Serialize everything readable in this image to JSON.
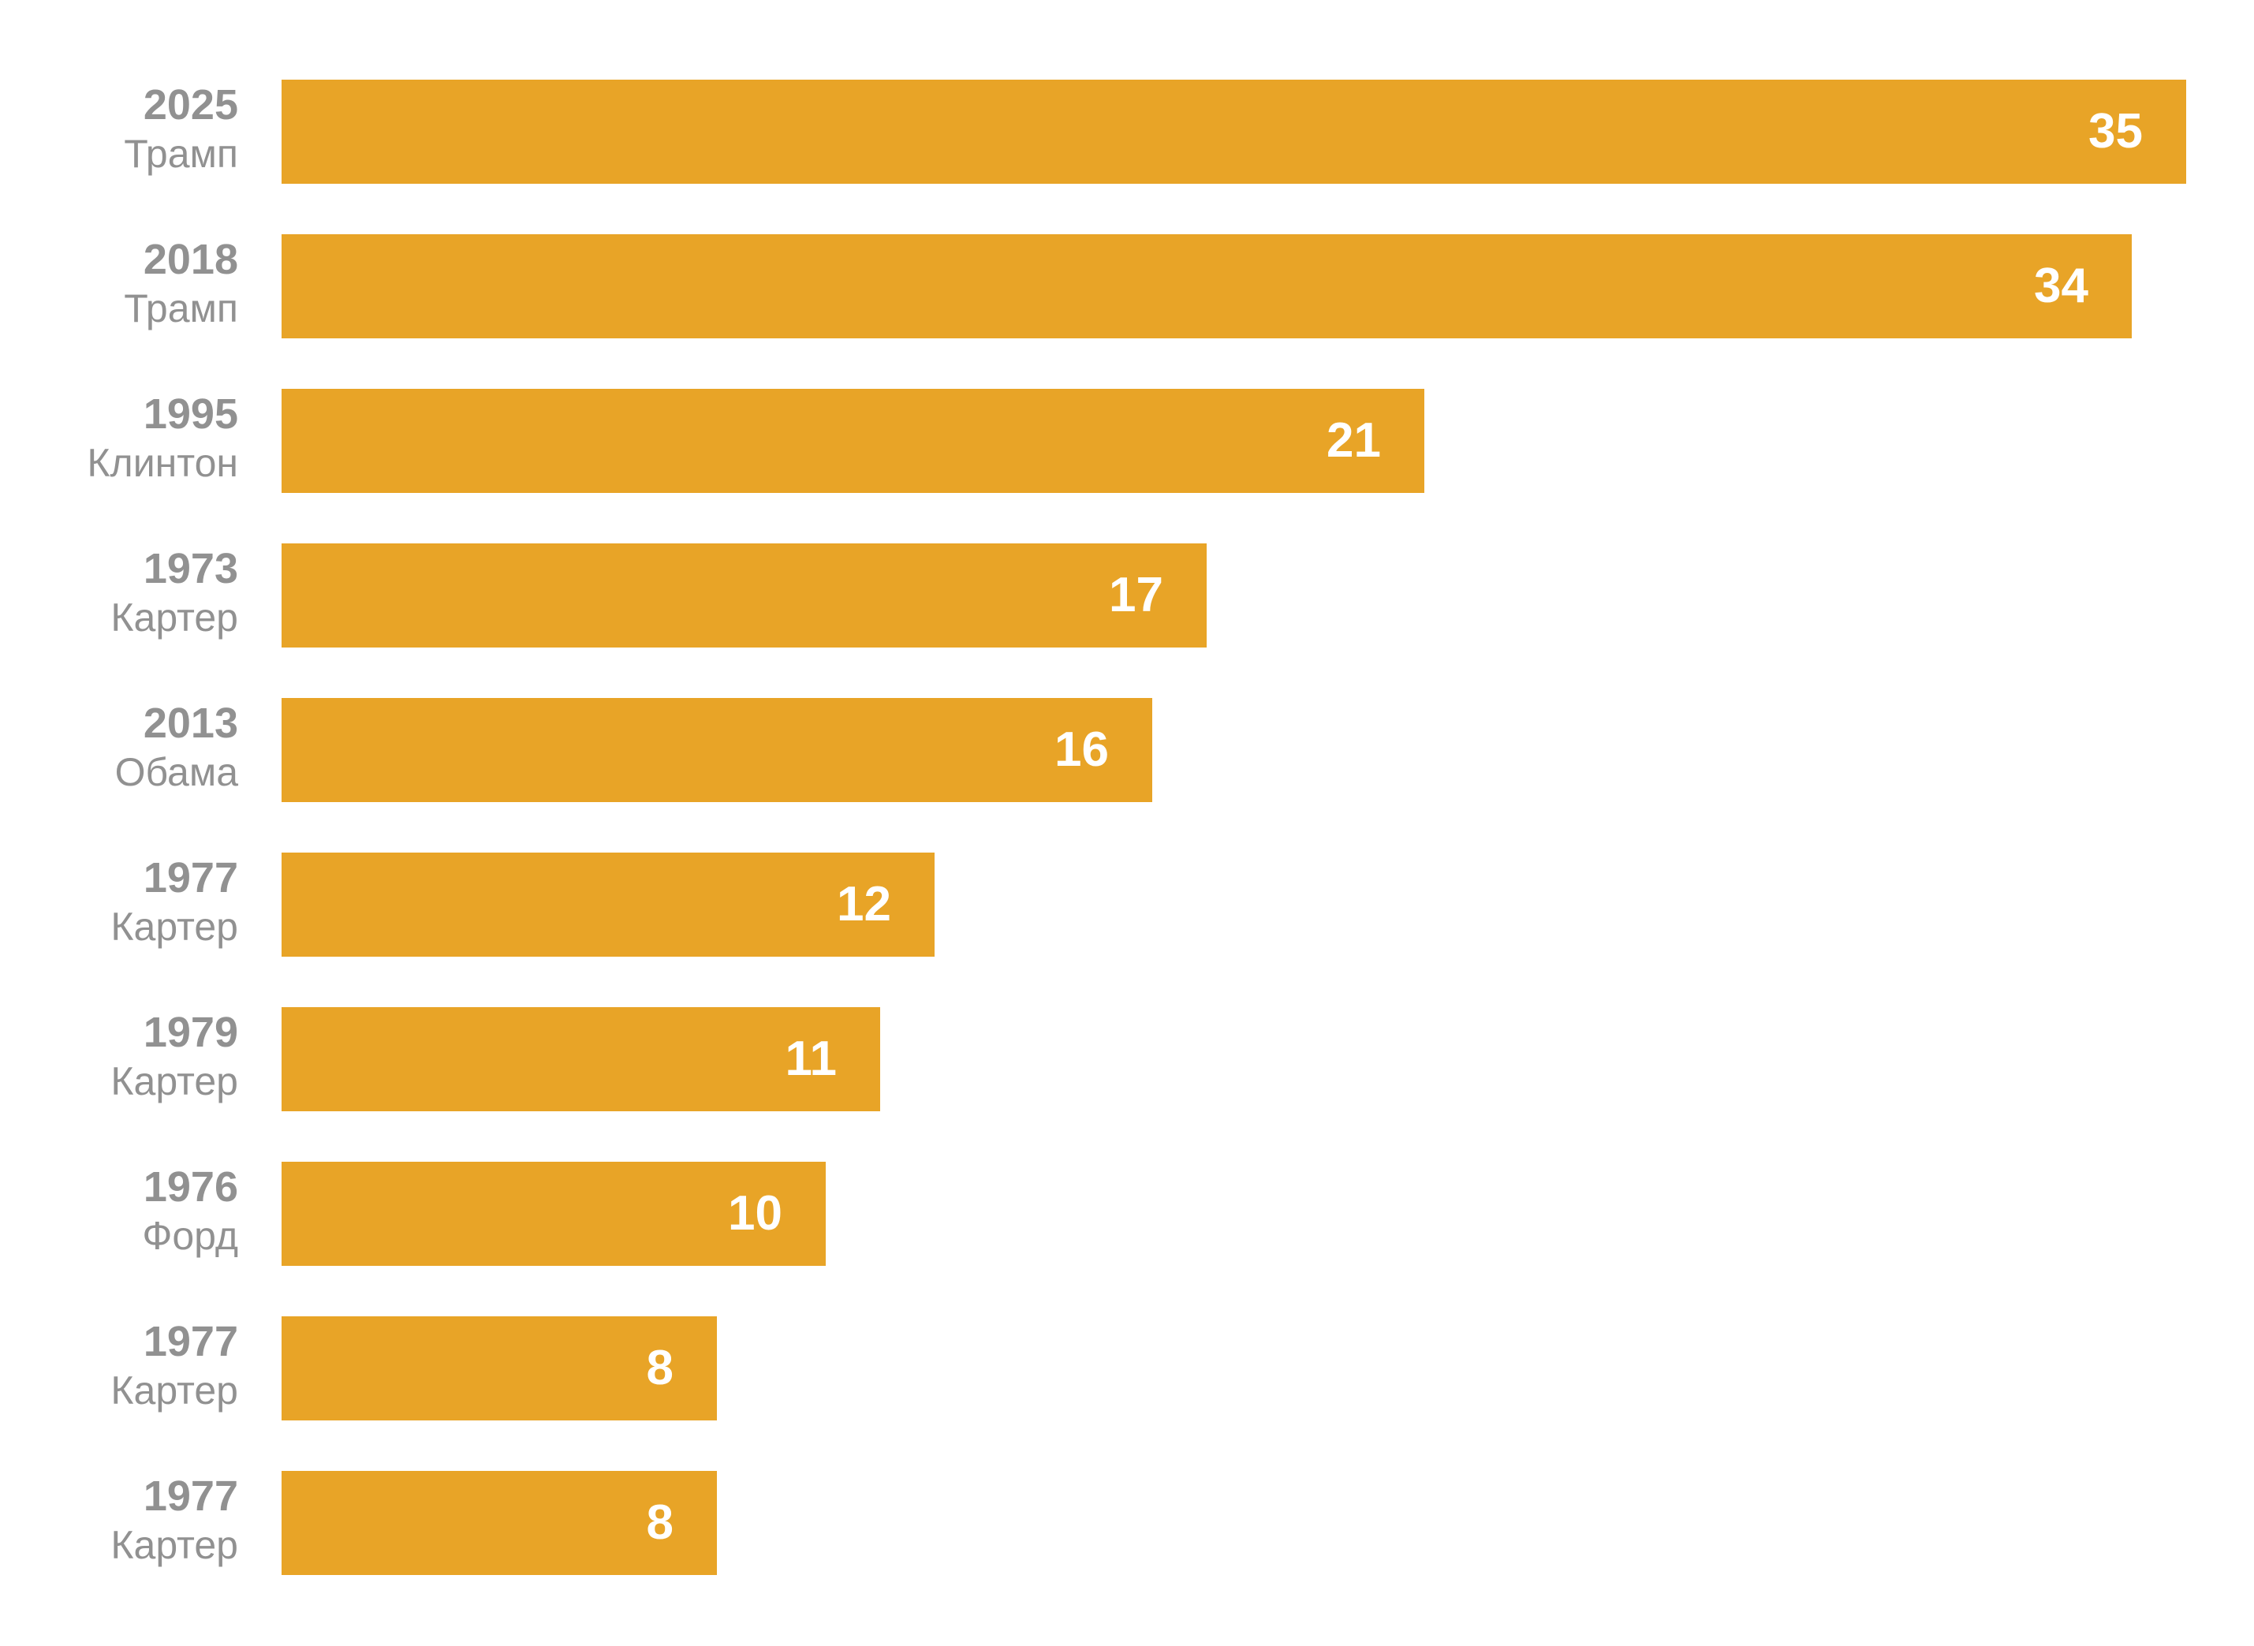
{
  "chart_data": {
    "type": "bar",
    "orientation": "horizontal",
    "categories": [
      {
        "year": "2025",
        "name": "Трамп"
      },
      {
        "year": "2018",
        "name": "Трамп"
      },
      {
        "year": "1995",
        "name": "Клинтон"
      },
      {
        "year": "1973",
        "name": "Картер"
      },
      {
        "year": "2013",
        "name": "Обама"
      },
      {
        "year": "1977",
        "name": "Картер"
      },
      {
        "year": "1979",
        "name": "Картер"
      },
      {
        "year": "1976",
        "name": "Форд"
      },
      {
        "year": "1977",
        "name": "Картер"
      },
      {
        "year": "1977",
        "name": "Картер"
      }
    ],
    "values": [
      35,
      34,
      21,
      17,
      16,
      12,
      11,
      10,
      8,
      8
    ],
    "title": "",
    "xlabel": "",
    "ylabel": "",
    "xlim": [
      0,
      35
    ],
    "grid": false,
    "legend": "none",
    "colors": {
      "bar": "#E8A427",
      "label": "#919191",
      "value_label": "#FFFFFF"
    }
  }
}
